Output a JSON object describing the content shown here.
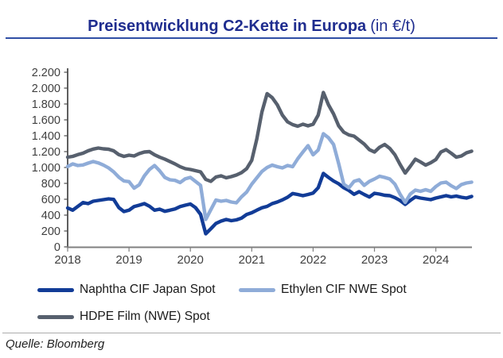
{
  "header": {
    "title_main": "Preisentwicklung C2-Kette in Europa",
    "title_unit": "(in €/t)"
  },
  "footer": {
    "source_label": "Quelle: Bloomberg"
  },
  "colors": {
    "title": "#1F2D8F",
    "title_rule": "#2F4FA5",
    "axis_y": "#4D4D4D",
    "axis_x": "#808080",
    "axis_text": "#3F3F3F",
    "naphtha": "#123C97",
    "ethylen": "#8FACD8",
    "hdpe": "#57606E"
  },
  "chart_data": {
    "type": "line",
    "title": "Preisentwicklung C2-Kette in Europa",
    "unit": "€/t",
    "frequency": "monthly",
    "x_start": "2018-01",
    "x_end": "2024-08",
    "xlabel": "",
    "ylabel": "",
    "ylim": [
      0,
      2200
    ],
    "grid": false,
    "legend_position": "bottom",
    "x_tick_labels": [
      "2018",
      "2019",
      "2020",
      "2021",
      "2022",
      "2023",
      "2024"
    ],
    "y_ticks": [
      0,
      200,
      400,
      600,
      800,
      1000,
      1200,
      1400,
      1600,
      1800,
      2000,
      2200
    ],
    "y_tick_labels": [
      "0",
      "200",
      "400",
      "600",
      "800",
      "1.000",
      "1.200",
      "1.400",
      "1.600",
      "1.800",
      "2.000",
      "2.200"
    ],
    "series": [
      {
        "name": "Naphtha CIF Japan Spot",
        "color": "#123C97",
        "values": [
          490,
          462,
          510,
          558,
          545,
          575,
          585,
          595,
          605,
          598,
          495,
          445,
          462,
          508,
          525,
          545,
          512,
          462,
          475,
          448,
          462,
          478,
          508,
          525,
          540,
          495,
          410,
          165,
          228,
          295,
          325,
          345,
          330,
          340,
          362,
          408,
          430,
          462,
          492,
          510,
          545,
          565,
          592,
          625,
          672,
          660,
          645,
          660,
          678,
          745,
          925,
          875,
          830,
          795,
          745,
          710,
          662,
          695,
          660,
          628,
          675,
          665,
          650,
          645,
          620,
          585,
          535,
          585,
          630,
          615,
          605,
          595,
          615,
          630,
          645,
          630,
          640,
          625,
          615,
          635
        ]
      },
      {
        "name": "Ethylen CIF NWE Spot",
        "color": "#8FACD8",
        "values": [
          1012,
          1045,
          1025,
          1032,
          1055,
          1075,
          1058,
          1030,
          995,
          945,
          878,
          830,
          822,
          740,
          782,
          895,
          975,
          1025,
          958,
          875,
          845,
          838,
          810,
          858,
          875,
          825,
          775,
          345,
          468,
          590,
          575,
          585,
          565,
          555,
          630,
          690,
          790,
          870,
          950,
          1000,
          1030,
          1010,
          995,
          1025,
          1010,
          1110,
          1195,
          1275,
          1160,
          1220,
          1425,
          1375,
          1290,
          1050,
          790,
          745,
          825,
          845,
          775,
          825,
          855,
          890,
          875,
          855,
          790,
          665,
          560,
          665,
          715,
          700,
          720,
          700,
          760,
          805,
          815,
          770,
          735,
          785,
          805,
          815
        ]
      },
      {
        "name": "HDPE Film (NWE) Spot",
        "color": "#57606E",
        "values": [
          1130,
          1140,
          1162,
          1180,
          1210,
          1232,
          1245,
          1235,
          1230,
          1210,
          1162,
          1140,
          1155,
          1145,
          1175,
          1195,
          1200,
          1160,
          1130,
          1105,
          1075,
          1045,
          1010,
          985,
          975,
          960,
          945,
          850,
          825,
          880,
          895,
          870,
          885,
          905,
          935,
          985,
          1090,
          1360,
          1700,
          1930,
          1880,
          1790,
          1660,
          1575,
          1540,
          1520,
          1545,
          1525,
          1545,
          1660,
          1945,
          1790,
          1675,
          1525,
          1445,
          1410,
          1395,
          1345,
          1295,
          1225,
          1195,
          1255,
          1290,
          1240,
          1160,
          1040,
          930,
          1015,
          1105,
          1070,
          1030,
          1060,
          1100,
          1195,
          1225,
          1180,
          1130,
          1145,
          1185,
          1205
        ]
      }
    ]
  }
}
